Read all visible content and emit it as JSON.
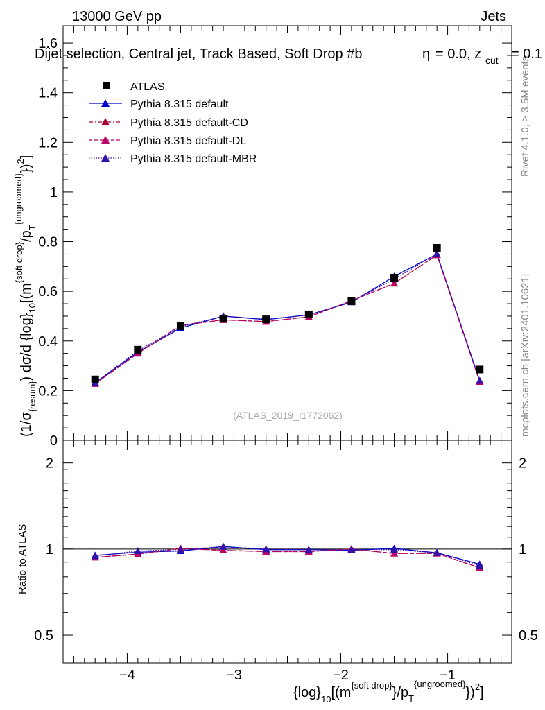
{
  "header": {
    "left": "13000 GeV pp",
    "right": "Jets",
    "selection": "Dijet selection, Central jet, Track Based, Soft Drop #b",
    "beta_cut": "= 0.0, z",
    "zcut_sub": "cut",
    "zcut_value": "= 0.1",
    "eta_symbol": "η"
  },
  "side_labels": {
    "rivet": "Rivet 4.1.0, ≥ 3.5M events",
    "mcplots": "mcplots.cern.ch [arXiv:2401.10621]"
  },
  "watermark": "(ATLAS_2019_I1772062)",
  "legend": {
    "atlas": "ATLAS",
    "default": "Pythia 8.315 default",
    "cd": "Pythia 8.315 default-CD",
    "dl": "Pythia 8.315 default-DL",
    "mbr": "Pythia 8.315 default-MBR"
  },
  "axes": {
    "ylabel_pre": "(1/σ",
    "ylabel_resum": "{resum}",
    "ylabel_mid": ") dσ/d {log}",
    "ylabel_sub10": "10",
    "ylabel_m": "[(m",
    "ylabel_sd": "{soft drop}",
    "ylabel_pt": "/p",
    "ylabel_T": "T",
    "ylabel_ung": "{ungroomed}",
    "ylabel_close": "})",
    "ylabel_sq": "2",
    "ylabel_end": "]",
    "ratio_ylabel": "Ratio to ATLAS",
    "xlabel_pre": "{log}",
    "xlabel_sub10": "10",
    "xlabel_m": "[(m",
    "xlabel_sd": "{soft drop}",
    "xlabel_pt": "}/p",
    "xlabel_T": "T",
    "xlabel_ung": "{ungroomed}",
    "xlabel_close": "})",
    "xlabel_sq": "2",
    "xlabel_end": "]",
    "main_yticks": [
      "0",
      "0.2",
      "0.4",
      "0.6",
      "0.8",
      "1",
      "1.2",
      "1.4",
      "1.6"
    ],
    "ratio_yticks": [
      "0.5",
      "1",
      "2"
    ],
    "xticks": [
      "−4",
      "−3",
      "−2",
      "−1"
    ]
  },
  "colors": {
    "atlas": "#000000",
    "default": "#0000cc",
    "cd": "#aa0033",
    "dl": "#bb0066",
    "mbr": "#3311aa"
  },
  "chart_data": [
    {
      "type": "line",
      "panel": "main",
      "xlabel": "{log}10[(m{soft drop}/pT{ungroomed})2]",
      "ylabel": "(1/σ{resum}) dσ/d {log}10[(m{soft drop}/pT{ungroomed})2]",
      "xlim": [
        -4.6,
        -0.4
      ],
      "ylim": [
        0,
        1.67
      ],
      "x": [
        -4.3,
        -3.9,
        -3.5,
        -3.1,
        -2.7,
        -2.3,
        -1.9,
        -1.5,
        -1.1,
        -0.7
      ],
      "series": [
        {
          "name": "ATLAS",
          "key": "atlas",
          "style": "markers",
          "values": [
            0.245,
            0.365,
            0.46,
            0.49,
            0.487,
            0.507,
            0.56,
            0.655,
            0.775,
            0.285
          ]
        },
        {
          "name": "Pythia 8.315 default",
          "key": "default",
          "style": "solid",
          "values": [
            0.232,
            0.355,
            0.452,
            0.5,
            0.486,
            0.505,
            0.556,
            0.66,
            0.75,
            0.24
          ]
        },
        {
          "name": "Pythia 8.315 default-CD",
          "key": "cd",
          "style": "dashdot",
          "values": [
            0.228,
            0.35,
            0.463,
            0.485,
            0.478,
            0.497,
            0.562,
            0.632,
            0.746,
            0.236
          ]
        },
        {
          "name": "Pythia 8.315 default-DL",
          "key": "dl",
          "style": "dashed",
          "values": [
            0.228,
            0.35,
            0.463,
            0.485,
            0.478,
            0.497,
            0.562,
            0.632,
            0.746,
            0.236
          ]
        },
        {
          "name": "Pythia 8.315 default-MBR",
          "key": "mbr",
          "style": "dotted",
          "values": [
            0.232,
            0.36,
            0.458,
            0.5,
            0.488,
            0.505,
            0.558,
            0.65,
            0.75,
            0.24
          ]
        }
      ]
    },
    {
      "type": "line",
      "panel": "ratio",
      "ylabel": "Ratio to ATLAS",
      "yscale": "log",
      "xlim": [
        -4.6,
        -0.4
      ],
      "ylim": [
        0.4,
        2.4
      ],
      "x": [
        -4.3,
        -3.9,
        -3.5,
        -3.1,
        -2.7,
        -2.3,
        -1.9,
        -1.5,
        -1.1,
        -0.7
      ],
      "series": [
        {
          "name": "Pythia 8.315 default",
          "key": "default",
          "style": "solid",
          "values": [
            0.95,
            0.975,
            0.985,
            1.02,
            0.995,
            0.995,
            0.99,
            1.005,
            0.97,
            0.885
          ]
        },
        {
          "name": "Pythia 8.315 default-CD",
          "key": "cd",
          "style": "dashdot",
          "values": [
            0.935,
            0.96,
            1.005,
            0.99,
            0.98,
            0.98,
            1.0,
            0.965,
            0.965,
            0.86
          ]
        },
        {
          "name": "Pythia 8.315 default-DL",
          "key": "dl",
          "style": "dashed",
          "values": [
            0.935,
            0.96,
            1.005,
            0.99,
            0.98,
            0.98,
            1.0,
            0.965,
            0.965,
            0.86
          ]
        },
        {
          "name": "Pythia 8.315 default-MBR",
          "key": "mbr",
          "style": "dotted",
          "values": [
            0.945,
            0.985,
            0.995,
            1.02,
            1.0,
            0.995,
            0.995,
            0.995,
            0.97,
            0.875
          ]
        }
      ]
    }
  ]
}
